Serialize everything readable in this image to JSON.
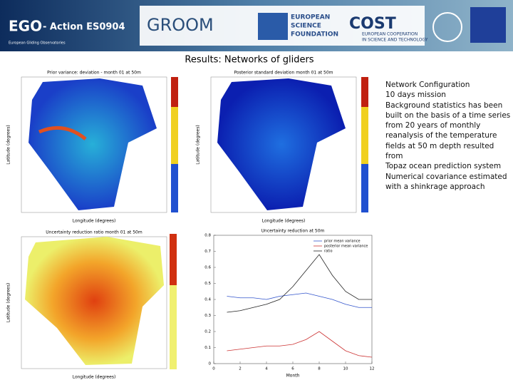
{
  "header": {
    "ego": "EGO",
    "action": "- Action ES0904",
    "subtitle": "European Gliding Observatories",
    "groom": "GROOM",
    "esf": [
      "EUROPEAN",
      "SCIENCE",
      "FOUNDATION"
    ],
    "cost": "COST",
    "cost_sub": [
      "EUROPEAN COOPERATION",
      "IN SCIENCE AND TECHNOLOGY"
    ]
  },
  "title": "Results: Networks of gliders",
  "panels": [
    {
      "title": "Prior variance: deviation - month 01 at 50m",
      "xlabel": "Longitude (degrees)",
      "ylabel": "Latitude (degrees)"
    },
    {
      "title": "Posterior standard deviation month 01 at 50m",
      "xlabel": "Longitude (degrees)",
      "ylabel": "Latitude (degrees)"
    },
    {
      "title": "Uncertainty reduction ratio month 01 at 50m",
      "xlabel": "Longitude (degrees)",
      "ylabel": "Latitude (degrees)"
    }
  ],
  "line_chart": {
    "title": "Uncertainty reduction at 50m",
    "xlabel": "Month",
    "xlim": [
      0,
      12
    ],
    "xticks": [
      0,
      2,
      4,
      6,
      8,
      10,
      12
    ],
    "ylim": [
      0,
      0.8
    ],
    "yticks": [
      0,
      0.1,
      0.2,
      0.3,
      0.4,
      0.5,
      0.6,
      0.7,
      0.8
    ],
    "x": [
      1,
      2,
      3,
      4,
      5,
      6,
      7,
      8,
      9,
      10,
      11,
      12
    ],
    "series": [
      {
        "name": "prior mean variance",
        "color": "#3355cc",
        "values": [
          0.42,
          0.41,
          0.41,
          0.4,
          0.42,
          0.43,
          0.44,
          0.42,
          0.4,
          0.37,
          0.35,
          0.35
        ]
      },
      {
        "name": "posterior mean variance",
        "color": "#cc3333",
        "values": [
          0.08,
          0.09,
          0.1,
          0.11,
          0.11,
          0.12,
          0.15,
          0.2,
          0.14,
          0.08,
          0.05,
          0.04
        ]
      },
      {
        "name": "ratio",
        "color": "#222222",
        "values": [
          0.32,
          0.33,
          0.35,
          0.37,
          0.4,
          0.48,
          0.58,
          0.68,
          0.55,
          0.45,
          0.4,
          0.4
        ]
      }
    ]
  },
  "text": [
    "Network Configuration",
    "10 days mission",
    "Background statistics has been",
    "built on the basis of a time series",
    "from 20 years of monthly",
    "reanalysis of the temperature",
    "fields at 50 m depth resulted from",
    "Topaz ocean prediction system",
    "Numerical covariance estimated",
    "with a shinkrage approach"
  ]
}
